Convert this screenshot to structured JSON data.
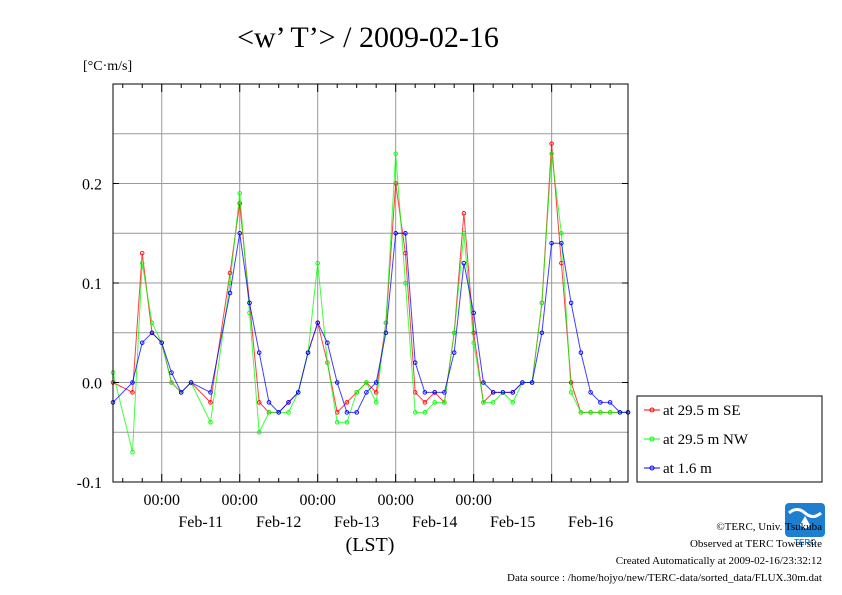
{
  "chart_data": {
    "type": "line",
    "title": "<w’ T’> / 2009-02-16",
    "ylabel": "[°C·m/s]",
    "xlabel": "(LST)",
    "ylim": [
      -0.1,
      0.3
    ],
    "xlim": [
      "2009-02-10T09:00",
      "2009-02-16T23:30"
    ],
    "y_ticks": [
      "0.2",
      "0.1",
      "0.0",
      "-0.1"
    ],
    "x_time_labels": [
      "00:00",
      "00:00",
      "00:00",
      "00:00",
      "00:00"
    ],
    "x_day_labels": [
      "Feb-11",
      "Feb-12",
      "Feb-13",
      "Feb-14",
      "Feb-15",
      "Feb-16"
    ],
    "grid": true,
    "legend_position": "right",
    "series": [
      {
        "name": "at 29.5 m SE",
        "color": "#ff0000",
        "x": [
          "2009-02-10T09:00",
          "2009-02-10T15:00",
          "2009-02-10T18:00",
          "2009-02-10T21:00",
          "2009-02-11T00:00",
          "2009-02-11T03:00",
          "2009-02-11T06:00",
          "2009-02-11T09:00",
          "2009-02-11T15:00",
          "2009-02-11T21:00",
          "2009-02-12T00:00",
          "2009-02-12T03:00",
          "2009-02-12T06:00",
          "2009-02-12T09:00",
          "2009-02-12T12:00",
          "2009-02-12T15:00",
          "2009-02-12T18:00",
          "2009-02-12T21:00",
          "2009-02-13T00:00",
          "2009-02-13T03:00",
          "2009-02-13T06:00",
          "2009-02-13T09:00",
          "2009-02-13T12:00",
          "2009-02-13T15:00",
          "2009-02-13T18:00",
          "2009-02-13T21:00",
          "2009-02-14T00:00",
          "2009-02-14T03:00",
          "2009-02-14T06:00",
          "2009-02-14T09:00",
          "2009-02-14T12:00",
          "2009-02-14T15:00",
          "2009-02-14T18:00",
          "2009-02-14T21:00",
          "2009-02-15T00:00",
          "2009-02-15T03:00",
          "2009-02-15T06:00",
          "2009-02-15T09:00",
          "2009-02-15T12:00",
          "2009-02-15T15:00",
          "2009-02-15T18:00",
          "2009-02-15T21:00",
          "2009-02-16T00:00",
          "2009-02-16T03:00",
          "2009-02-16T06:00",
          "2009-02-16T09:00",
          "2009-02-16T12:00",
          "2009-02-16T15:00",
          "2009-02-16T18:00",
          "2009-02-16T21:00",
          "2009-02-16T23:30"
        ],
        "values": [
          0.0,
          -0.01,
          0.13,
          0.05,
          0.04,
          0.0,
          -0.01,
          0.0,
          -0.02,
          0.11,
          0.18,
          0.08,
          -0.02,
          -0.03,
          -0.03,
          -0.02,
          -0.01,
          0.03,
          0.06,
          0.02,
          -0.03,
          -0.02,
          -0.01,
          0.0,
          -0.01,
          0.06,
          0.2,
          0.13,
          -0.01,
          -0.02,
          -0.01,
          -0.02,
          0.05,
          0.17,
          0.05,
          -0.02,
          -0.01,
          -0.01,
          -0.01,
          0.0,
          0.0,
          0.08,
          0.24,
          0.12,
          0.0,
          -0.03,
          -0.03,
          -0.03,
          -0.03,
          -0.03,
          -0.03
        ]
      },
      {
        "name": "at 29.5 m NW",
        "color": "#00ff00",
        "x": [
          "2009-02-10T09:00",
          "2009-02-10T15:00",
          "2009-02-10T18:00",
          "2009-02-10T21:00",
          "2009-02-11T00:00",
          "2009-02-11T03:00",
          "2009-02-11T06:00",
          "2009-02-11T09:00",
          "2009-02-11T15:00",
          "2009-02-11T21:00",
          "2009-02-12T00:00",
          "2009-02-12T03:00",
          "2009-02-12T06:00",
          "2009-02-12T09:00",
          "2009-02-12T12:00",
          "2009-02-12T15:00",
          "2009-02-12T18:00",
          "2009-02-12T21:00",
          "2009-02-13T00:00",
          "2009-02-13T03:00",
          "2009-02-13T06:00",
          "2009-02-13T09:00",
          "2009-02-13T12:00",
          "2009-02-13T15:00",
          "2009-02-13T18:00",
          "2009-02-13T21:00",
          "2009-02-14T00:00",
          "2009-02-14T03:00",
          "2009-02-14T06:00",
          "2009-02-14T09:00",
          "2009-02-14T12:00",
          "2009-02-14T15:00",
          "2009-02-14T18:00",
          "2009-02-14T21:00",
          "2009-02-15T00:00",
          "2009-02-15T03:00",
          "2009-02-15T06:00",
          "2009-02-15T09:00",
          "2009-02-15T12:00",
          "2009-02-15T15:00",
          "2009-02-15T18:00",
          "2009-02-15T21:00",
          "2009-02-16T00:00",
          "2009-02-16T03:00",
          "2009-02-16T06:00",
          "2009-02-16T09:00",
          "2009-02-16T12:00",
          "2009-02-16T15:00",
          "2009-02-16T18:00",
          "2009-02-16T21:00",
          "2009-02-16T23:30"
        ],
        "values": [
          0.01,
          -0.07,
          0.12,
          0.06,
          0.04,
          0.0,
          -0.01,
          0.0,
          -0.04,
          0.1,
          0.19,
          0.07,
          -0.05,
          -0.03,
          -0.03,
          -0.03,
          -0.01,
          0.03,
          0.12,
          0.02,
          -0.04,
          -0.04,
          -0.01,
          0.0,
          -0.02,
          0.06,
          0.23,
          0.1,
          -0.03,
          -0.03,
          -0.02,
          -0.02,
          0.05,
          0.15,
          0.04,
          -0.02,
          -0.02,
          -0.01,
          -0.02,
          0.0,
          0.0,
          0.08,
          0.23,
          0.15,
          -0.01,
          -0.03,
          -0.03,
          -0.03,
          -0.03,
          -0.03,
          -0.03
        ]
      },
      {
        "name": "at 1.6 m",
        "color": "#0000ff",
        "x": [
          "2009-02-10T09:00",
          "2009-02-10T15:00",
          "2009-02-10T18:00",
          "2009-02-10T21:00",
          "2009-02-11T00:00",
          "2009-02-11T03:00",
          "2009-02-11T06:00",
          "2009-02-11T09:00",
          "2009-02-11T15:00",
          "2009-02-11T21:00",
          "2009-02-12T00:00",
          "2009-02-12T03:00",
          "2009-02-12T06:00",
          "2009-02-12T09:00",
          "2009-02-12T12:00",
          "2009-02-12T15:00",
          "2009-02-12T18:00",
          "2009-02-12T21:00",
          "2009-02-13T00:00",
          "2009-02-13T03:00",
          "2009-02-13T06:00",
          "2009-02-13T09:00",
          "2009-02-13T12:00",
          "2009-02-13T15:00",
          "2009-02-13T18:00",
          "2009-02-13T21:00",
          "2009-02-14T00:00",
          "2009-02-14T03:00",
          "2009-02-14T06:00",
          "2009-02-14T09:00",
          "2009-02-14T12:00",
          "2009-02-14T15:00",
          "2009-02-14T18:00",
          "2009-02-14T21:00",
          "2009-02-15T00:00",
          "2009-02-15T03:00",
          "2009-02-15T06:00",
          "2009-02-15T09:00",
          "2009-02-15T12:00",
          "2009-02-15T15:00",
          "2009-02-15T18:00",
          "2009-02-15T21:00",
          "2009-02-16T00:00",
          "2009-02-16T03:00",
          "2009-02-16T06:00",
          "2009-02-16T09:00",
          "2009-02-16T12:00",
          "2009-02-16T15:00",
          "2009-02-16T18:00",
          "2009-02-16T21:00",
          "2009-02-16T23:30"
        ],
        "values": [
          -0.02,
          0.0,
          0.04,
          0.05,
          0.04,
          0.01,
          -0.01,
          0.0,
          -0.01,
          0.09,
          0.15,
          0.08,
          0.03,
          -0.02,
          -0.03,
          -0.02,
          -0.01,
          0.03,
          0.06,
          0.04,
          0.0,
          -0.03,
          -0.03,
          -0.01,
          0.0,
          0.05,
          0.15,
          0.15,
          0.02,
          -0.01,
          -0.01,
          -0.01,
          0.03,
          0.12,
          0.07,
          0.0,
          -0.01,
          -0.01,
          -0.01,
          0.0,
          0.0,
          0.05,
          0.14,
          0.14,
          0.08,
          0.03,
          -0.01,
          -0.02,
          -0.02,
          -0.03,
          -0.03
        ]
      }
    ]
  },
  "footer": {
    "copyright": "©TERC, Univ. Tsukuba",
    "observed": "Observed at TERC Tower site",
    "created": "Created Automatically at 2009-02-16/23:32:12",
    "source": "Data source : /home/hojyo/new/TERC-data/sorted_data/FLUX.30m.dat"
  },
  "logo": {
    "text": "TERC",
    "color": "#1e7fd0"
  }
}
